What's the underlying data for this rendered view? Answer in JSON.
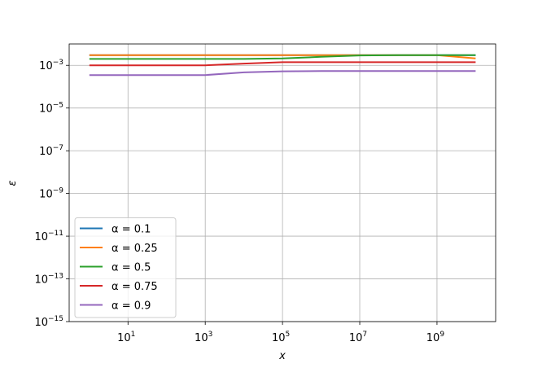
{
  "chart_data": {
    "type": "line",
    "xlabel": "x",
    "ylabel": "ε",
    "xscale": "log",
    "yscale": "log",
    "grid": true,
    "legend": "lower left",
    "x": [
      1,
      10,
      100,
      1000,
      10000,
      100000,
      1000000,
      10000000,
      100000000,
      1000000000,
      10000000000
    ],
    "xlim": [
      0.3,
      33000000000
    ],
    "ylim": [
      1e-15,
      0.01
    ],
    "xticks": [
      {
        "value": 10,
        "label": "101"
      },
      {
        "value": 1000,
        "label": "103"
      },
      {
        "value": 100000,
        "label": "105"
      },
      {
        "value": 10000000,
        "label": "107"
      },
      {
        "value": 1000000000,
        "label": "109"
      }
    ],
    "yticks": [
      {
        "value": 1e-15,
        "label": "10−15"
      },
      {
        "value": 1e-13,
        "label": "10−13"
      },
      {
        "value": 1e-11,
        "label": "10−11"
      },
      {
        "value": 1e-09,
        "label": "10−9"
      },
      {
        "value": 1e-07,
        "label": "10−7"
      },
      {
        "value": 1e-05,
        "label": "10−5"
      },
      {
        "value": 0.001,
        "label": "10−3"
      }
    ],
    "series": [
      {
        "name": "α = 0.1",
        "color": "#1f77b4",
        "values": [
          0.003,
          0.003,
          0.003,
          0.003,
          0.003,
          0.003,
          0.003,
          0.003,
          0.003,
          0.003,
          0.003
        ]
      },
      {
        "name": "α = 0.25",
        "color": "#ff7f0e",
        "values": [
          0.003,
          0.003,
          0.003,
          0.003,
          0.003,
          0.003,
          0.003,
          0.003,
          0.003,
          0.003,
          0.0021
        ]
      },
      {
        "name": "α = 0.5",
        "color": "#2ca02c",
        "values": [
          0.002,
          0.002,
          0.002,
          0.002,
          0.002,
          0.0021,
          0.0025,
          0.0029,
          0.003,
          0.003,
          0.003
        ]
      },
      {
        "name": "α = 0.75",
        "color": "#d62728",
        "values": [
          0.001,
          0.001,
          0.001,
          0.001,
          0.0012,
          0.0014,
          0.0014,
          0.0014,
          0.0014,
          0.0014,
          0.0014
        ]
      },
      {
        "name": "α = 0.9",
        "color": "#9467bd",
        "values": [
          0.00035,
          0.00035,
          0.00035,
          0.00035,
          0.00047,
          0.00052,
          0.00054,
          0.00054,
          0.00054,
          0.00054,
          0.00054
        ]
      }
    ]
  }
}
